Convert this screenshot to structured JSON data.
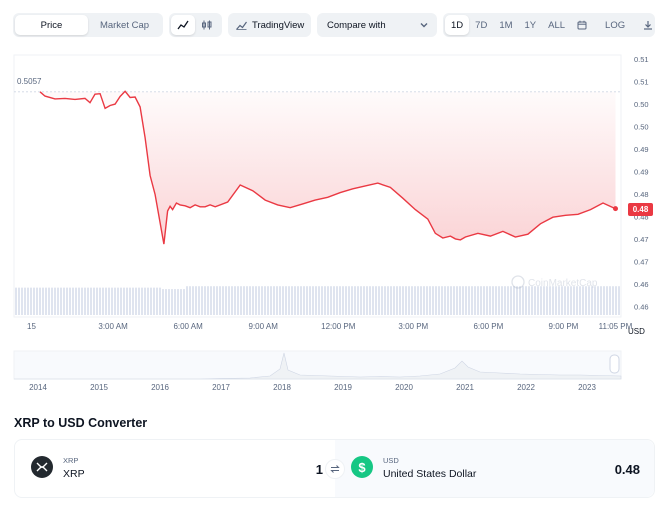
{
  "toolbar": {
    "type_tabs": [
      {
        "label": "Price",
        "active": true
      },
      {
        "label": "Market Cap",
        "active": false
      }
    ],
    "chart_types": [
      {
        "icon": "line-chart-icon",
        "active": true
      },
      {
        "icon": "candlestick-icon",
        "active": false
      }
    ],
    "tradingview_label": "TradingView",
    "compare_label": "Compare with",
    "ranges": [
      {
        "label": "1D",
        "active": true
      },
      {
        "label": "7D",
        "active": false
      },
      {
        "label": "1M",
        "active": false
      },
      {
        "label": "1Y",
        "active": false
      },
      {
        "label": "ALL",
        "active": false
      }
    ],
    "log_label": "LOG"
  },
  "chart": {
    "open_price_label": "0.5057",
    "current_price_label": "0.48",
    "currency_label": "USD",
    "watermark": "CoinMarketCap",
    "line_color": "#ea3943"
  },
  "chart_data": {
    "type": "area",
    "x_tick_labels": [
      "15",
      "3:00 AM",
      "6:00 AM",
      "9:00 AM",
      "12:00 PM",
      "3:00 PM",
      "6:00 PM",
      "9:00 PM",
      "11:05 PM"
    ],
    "y_tick_labels": [
      "0.51",
      "0.51",
      "0.50",
      "0.50",
      "0.49",
      "0.49",
      "0.48",
      "0.48",
      "0.47",
      "0.47",
      "0.46",
      "0.46"
    ],
    "ylim": [
      0.46,
      0.512
    ],
    "baseline": 0.5057,
    "x_hours": [
      0,
      0.2,
      0.6,
      1.0,
      1.4,
      1.8,
      2.0,
      2.2,
      2.4,
      2.6,
      2.8,
      3.0,
      3.2,
      3.4,
      3.6,
      3.8,
      4.0,
      4.2,
      4.4,
      4.6,
      4.8,
      4.95,
      5.1,
      5.2,
      5.3,
      5.45,
      5.6,
      5.8,
      6.0,
      6.2,
      6.4,
      6.6,
      6.8,
      7.0,
      7.5,
      8.0,
      8.5,
      9.0,
      9.5,
      10.0,
      10.5,
      11.0,
      11.5,
      12.0,
      12.5,
      13.0,
      13.5,
      14.0,
      14.5,
      15.0,
      15.5,
      15.8,
      16.1,
      16.4,
      16.6,
      16.8,
      17.0,
      17.5,
      18.0,
      18.5,
      19.0,
      19.5,
      20.0,
      20.5,
      21.0,
      21.5,
      22.0,
      22.5,
      23.0
    ],
    "values": [
      0.5057,
      0.5048,
      0.5042,
      0.5043,
      0.5041,
      0.5043,
      0.5034,
      0.5052,
      0.5053,
      0.5022,
      0.5028,
      0.5031,
      0.5047,
      0.5058,
      0.5045,
      0.5046,
      0.5025,
      0.496,
      0.488,
      0.484,
      0.478,
      0.4735,
      0.4805,
      0.4815,
      0.4808,
      0.4822,
      0.4818,
      0.4816,
      0.4812,
      0.4818,
      0.4814,
      0.4814,
      0.4818,
      0.4814,
      0.4824,
      0.486,
      0.4848,
      0.4828,
      0.4818,
      0.4812,
      0.482,
      0.4828,
      0.4834,
      0.4844,
      0.4852,
      0.4858,
      0.4864,
      0.4855,
      0.4832,
      0.4808,
      0.4788,
      0.4758,
      0.4748,
      0.4752,
      0.4746,
      0.4744,
      0.475,
      0.4758,
      0.4752,
      0.4762,
      0.475,
      0.4756,
      0.4778,
      0.4792,
      0.4796,
      0.4798,
      0.4808,
      0.4822,
      0.481
    ],
    "volume_level": 0.8
  },
  "navigator": {
    "years": [
      "2014",
      "2015",
      "2016",
      "2017",
      "2018",
      "2019",
      "2020",
      "2021",
      "2022",
      "2023"
    ]
  },
  "converter": {
    "title": "XRP to USD Converter",
    "from": {
      "code": "XRP",
      "name": "XRP",
      "amount": "1"
    },
    "to": {
      "code": "USD",
      "name": "United States Dollar",
      "amount": "0.48"
    }
  }
}
